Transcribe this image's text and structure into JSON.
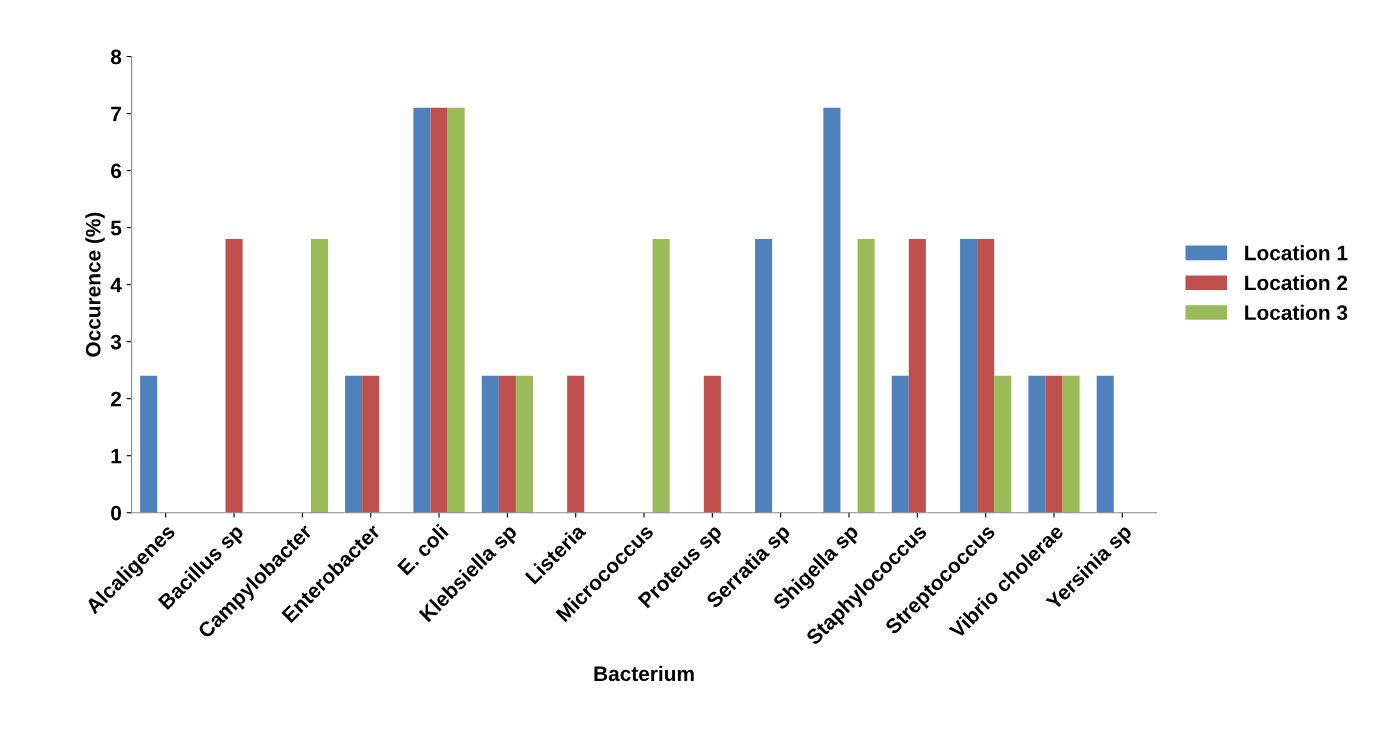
{
  "chart_data": {
    "type": "bar",
    "xlabel": "Bacterium",
    "ylabel": "Occurence (%)",
    "categories": [
      "Alcaligenes",
      "Bacillus sp",
      "Campylobacter",
      "Enterobacter",
      "E. coli",
      "Klebsiella sp",
      "Listeria",
      "Micrococcus",
      "Proteus sp",
      "Serratia sp",
      "Shigella sp",
      "Staphylococcus",
      "Streptococcus",
      "Vibrio cholerae",
      "Yersinia sp"
    ],
    "series": [
      {
        "name": "Location 1",
        "color": "#4f81bd",
        "values": [
          2.4,
          0,
          0,
          2.4,
          7.1,
          2.4,
          0,
          0,
          0,
          4.8,
          7.1,
          2.4,
          4.8,
          2.4,
          2.4
        ]
      },
      {
        "name": "Location 2",
        "color": "#c0504d",
        "values": [
          0,
          4.8,
          0,
          2.4,
          7.1,
          2.4,
          2.4,
          0,
          2.4,
          0,
          0,
          4.8,
          4.8,
          2.4,
          0
        ]
      },
      {
        "name": "Location 3",
        "color": "#9bbb59",
        "values": [
          0,
          0,
          4.8,
          0,
          7.1,
          2.4,
          0,
          4.8,
          0,
          0,
          4.8,
          0,
          2.4,
          2.4,
          0
        ]
      }
    ],
    "ylim": [
      0,
      8
    ],
    "yticks": [
      0,
      1,
      2,
      3,
      4,
      5,
      6,
      7,
      8
    ],
    "grid": false,
    "legend": "right"
  }
}
